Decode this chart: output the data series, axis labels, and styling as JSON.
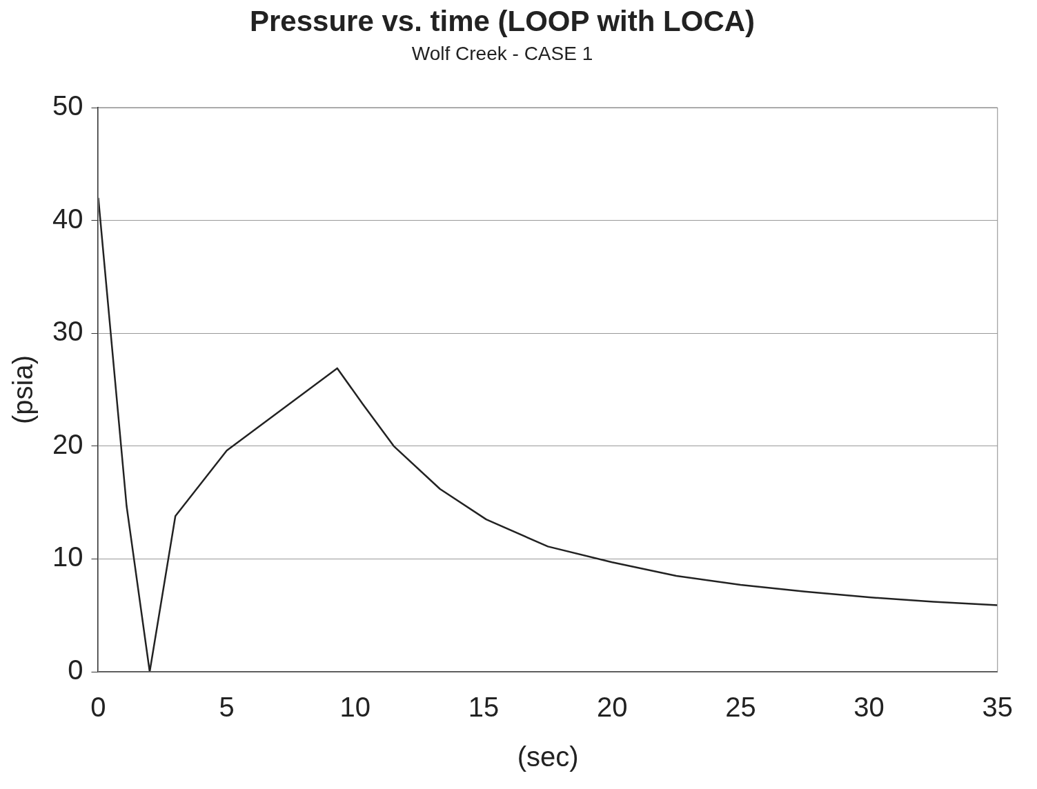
{
  "chart_data": {
    "type": "line",
    "title": "Pressure vs. time (LOOP with LOCA)",
    "subtitle": "Wolf Creek - CASE 1",
    "xlabel": "(sec)",
    "ylabel": "(psia)",
    "x": [
      0,
      1.1,
      2.0,
      3.0,
      5.0,
      9.3,
      10.3,
      11.5,
      13.3,
      15.1,
      17.5,
      20,
      22.5,
      25,
      27.5,
      30,
      32.5,
      35
    ],
    "series": [
      {
        "color": "#222222",
        "values": [
          42,
          14.7,
          0,
          13.8,
          19.6,
          26.9,
          23.7,
          20,
          16.2,
          13.5,
          11.1,
          9.7,
          8.5,
          7.7,
          7.1,
          6.6,
          6.2,
          5.9
        ]
      }
    ],
    "xlim": [
      0,
      35
    ],
    "xticks": [
      0,
      5,
      10,
      15,
      20,
      25,
      30,
      35
    ],
    "ylim": [
      0,
      50
    ],
    "yticks": [
      0,
      10,
      20,
      30,
      40,
      50
    ],
    "grid": "y",
    "legend": false,
    "marker": "none",
    "line_style": "solid"
  }
}
